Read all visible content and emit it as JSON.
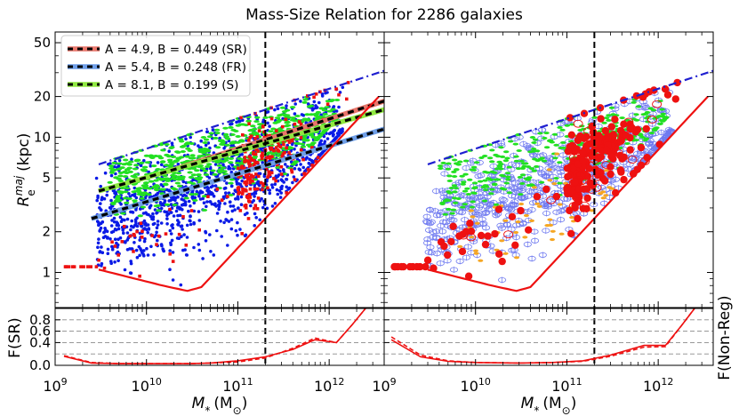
{
  "chart_data": {
    "type": "scatter",
    "title": "Mass-Size Relation for 2286 galaxies",
    "xlabel_main": "M",
    "xlabel_sub": "*",
    "xlabel_unit": "(M",
    "xlabel_unit_sub": "⊙",
    "xlabel_close": ")",
    "ylabel_main": "R",
    "ylabel_sup": "maj",
    "ylabel_sub": "e",
    "ylabel_unit": "(kpc)",
    "lower_ylabel_left": "F(SR)",
    "lower_ylabel_right": "F(Non-Reg)",
    "x_scale": "log",
    "xlim": [
      1000000000.0,
      4000000000000.0
    ],
    "ylim_top": [
      0.55,
      60
    ],
    "ylim_bottom": [
      0.0,
      1.0
    ],
    "x_ticks": [
      {
        "value": 1000000000.0,
        "base": "10",
        "exp": "9"
      },
      {
        "value": 10000000000.0,
        "base": "10",
        "exp": "10"
      },
      {
        "value": 100000000000.0,
        "base": "10",
        "exp": "11"
      },
      {
        "value": 1000000000000.0,
        "base": "10",
        "exp": "12"
      }
    ],
    "y_ticks_top": [
      {
        "value": 1,
        "label": "1"
      },
      {
        "value": 2,
        "label": "2"
      },
      {
        "value": 5,
        "label": "5"
      },
      {
        "value": 10,
        "label": "10"
      },
      {
        "value": 20,
        "label": "20"
      },
      {
        "value": 50,
        "label": "50"
      }
    ],
    "y_ticks_bottom": [
      {
        "value": 0.0,
        "label": "0.0"
      },
      {
        "value": 0.4,
        "label": "0.4"
      },
      {
        "value": 0.6,
        "label": "0.6"
      },
      {
        "value": 0.8,
        "label": "0.8"
      }
    ],
    "hgrid_bottom": [
      0.2,
      0.4,
      0.6,
      0.8
    ],
    "vertical_line_mass": 200000000000.0,
    "legend": [
      {
        "label": "A = 4.9, B = 0.449 (SR)",
        "color": "#e8756a",
        "A": 4.9,
        "B": 0.449
      },
      {
        "label": "A = 5.4, B = 0.248 (FR)",
        "color": "#6e9ee8",
        "A": 5.4,
        "B": 0.248
      },
      {
        "label": "A = 8.1, B = 0.199 (S)",
        "color": "#8fe840",
        "A": 8.1,
        "B": 0.199
      }
    ],
    "fit_lines": [
      {
        "name": "SR",
        "color": "#e8756a",
        "x": [
          16000000000.0,
          4000000000000.0
        ],
        "y": [
          5.5,
          18.5
        ]
      },
      {
        "name": "FR",
        "color": "#6e9ee8",
        "x": [
          2500000000.0,
          4000000000000.0
        ],
        "y": [
          2.5,
          11.5
        ]
      },
      {
        "name": "S",
        "color": "#8fe840",
        "x": [
          3000000000.0,
          4000000000000.0
        ],
        "y": [
          4.0,
          16.0
        ]
      }
    ],
    "upper_envelope": {
      "color": "#1f1fd0",
      "x": [
        3000000000.0,
        4000000000000.0
      ],
      "y": [
        6.3,
        31
      ]
    },
    "lower_envelope": {
      "color": "#ee1111",
      "x": [
        3000000000.0,
        15000000000.0,
        28000000000.0,
        40000000000.0,
        3500000000000.0
      ],
      "y": [
        1.05,
        0.8,
        0.73,
        0.78,
        20
      ]
    },
    "fraction_sr_left": {
      "solid": {
        "x": [
          1250000000.0,
          2500000000.0,
          5000000000.0,
          10000000000.0,
          30000000000.0,
          50000000000.0,
          100000000000.0,
          200000000000.0,
          400000000000.0,
          700000000000.0,
          1200000000000.0,
          1800000000000.0,
          2500000000000.0
        ],
        "y": [
          0.16,
          0.04,
          0.03,
          0.03,
          0.03,
          0.04,
          0.08,
          0.15,
          0.28,
          0.45,
          0.4,
          0.72,
          1.0
        ]
      },
      "dashed": {
        "x": [
          1250000000.0,
          2500000000.0,
          5000000000.0,
          10000000000.0,
          30000000000.0,
          50000000000.0,
          100000000000.0,
          200000000000.0,
          400000000000.0,
          700000000000.0,
          1200000000000.0,
          1800000000000.0,
          2500000000000.0
        ],
        "y": [
          0.17,
          0.05,
          0.03,
          0.03,
          0.03,
          0.04,
          0.06,
          0.13,
          0.3,
          0.48,
          0.4,
          0.72,
          1.0
        ]
      }
    },
    "fraction_sr_right": {
      "solid": {
        "x": [
          1200000000.0,
          2500000000.0,
          5000000000.0,
          10000000000.0,
          30000000000.0,
          70000000000.0,
          150000000000.0,
          300000000000.0,
          700000000000.0,
          1200000000000.0,
          1800000000000.0,
          2500000000000.0
        ],
        "y": [
          0.45,
          0.15,
          0.07,
          0.05,
          0.04,
          0.05,
          0.08,
          0.18,
          0.35,
          0.35,
          0.7,
          1.0
        ]
      },
      "dashed": {
        "x": [
          1200000000.0,
          2500000000.0,
          5000000000.0,
          10000000000.0,
          30000000000.0,
          70000000000.0,
          150000000000.0,
          300000000000.0,
          700000000000.0,
          1200000000000.0,
          1800000000000.0,
          2500000000000.0
        ],
        "y": [
          0.5,
          0.18,
          0.08,
          0.05,
          0.04,
          0.05,
          0.07,
          0.16,
          0.32,
          0.33,
          0.7,
          1.0
        ]
      }
    },
    "colors": {
      "blue_points": "#0a1ae6",
      "green_points": "#22e022",
      "red_points": "#ee1111",
      "orange_points": "#f5a623",
      "open_blue": "#6f7af0"
    }
  }
}
